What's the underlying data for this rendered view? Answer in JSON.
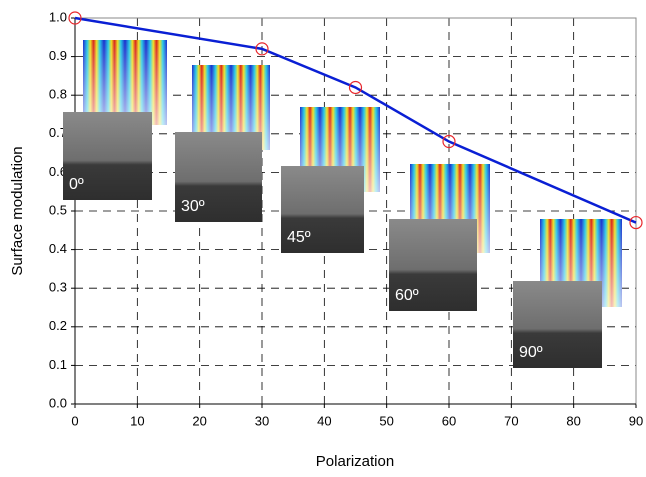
{
  "chart_data": {
    "type": "line",
    "x_label": "Polarization",
    "y_label": "Surface modulation",
    "x": [
      0,
      30,
      45,
      60,
      90
    ],
    "series": [
      {
        "color": "#0a1fd4",
        "marker_color": "#e8262b",
        "values": [
          1.0,
          0.92,
          0.82,
          0.68,
          0.47
        ]
      }
    ],
    "xlim": [
      0,
      90
    ],
    "xticks": [
      0,
      10,
      20,
      30,
      40,
      50,
      60,
      70,
      80,
      90
    ],
    "ylim": [
      0,
      1
    ],
    "yticks": [
      {
        "value": 0,
        "label": "0.0"
      },
      0.1,
      0.2,
      0.3,
      0.4,
      0.5,
      0.6,
      0.7,
      0.8,
      0.9,
      {
        "value": 1,
        "label": "1.0"
      }
    ],
    "grid": true,
    "insets": [
      {
        "label": "0º"
      },
      {
        "label": "30º"
      },
      {
        "label": "45º"
      },
      {
        "label": "60º"
      },
      {
        "label": "90º"
      }
    ]
  }
}
